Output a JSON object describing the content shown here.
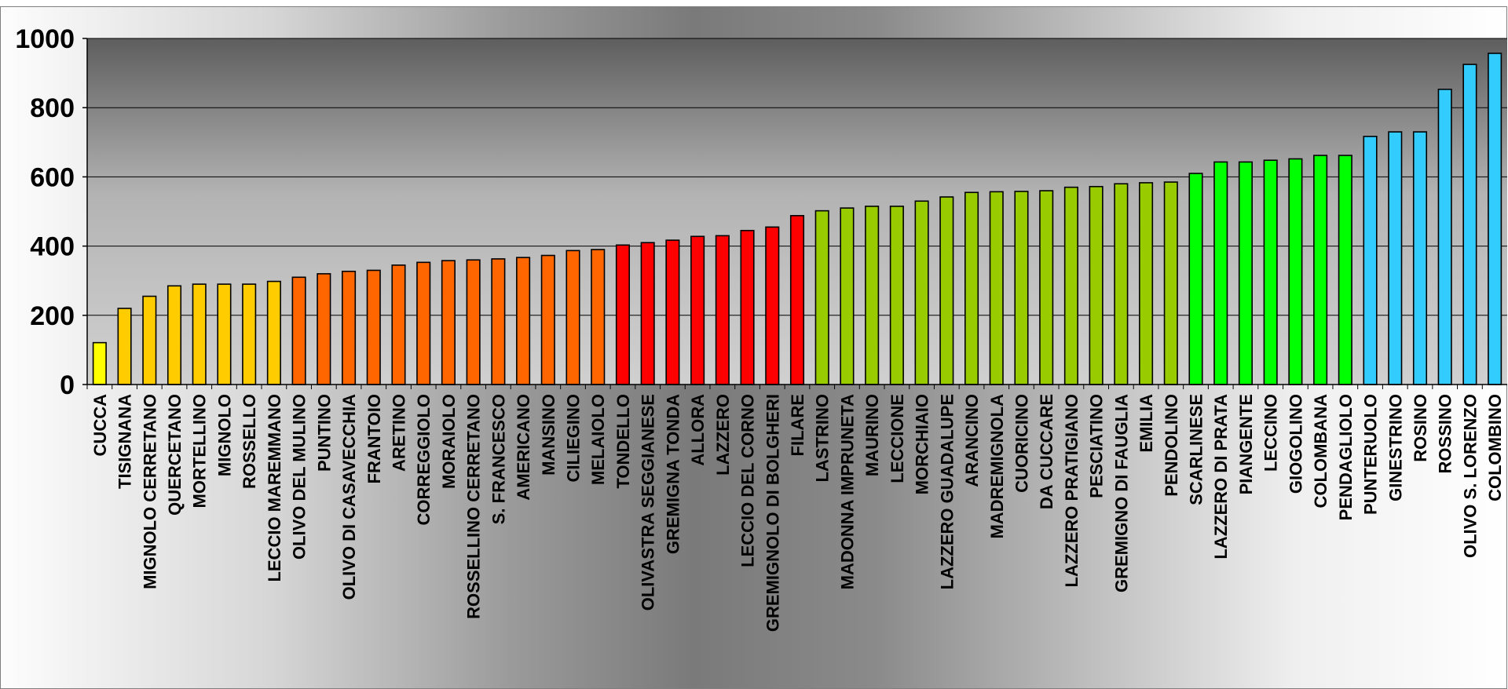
{
  "chart_data": {
    "type": "bar",
    "title": "",
    "xlabel": "",
    "ylabel": "",
    "ylim": [
      0,
      1000
    ],
    "yticks": [
      "0",
      "200",
      "400",
      "600",
      "800",
      "1000"
    ],
    "grid": true,
    "legend": "none",
    "categories": [
      "CUCCA",
      "TISIGNANA",
      "MIGNOLO CERRETANO",
      "QUERCETANO",
      "MORTELLINO",
      "MIGNOLO",
      "ROSSELLO",
      "LECCIO MAREMMANO",
      "OLIVO DEL MULINO",
      "PUNTINO",
      "OLIVO DI CASAVECCHIA",
      "FRANTOIO",
      "ARETINO",
      "CORREGGIOLO",
      "MORAIOLO",
      "ROSSELLINO  CERRETANO",
      "S. FRANCESCO",
      "AMERICANO",
      "MANSINO",
      "CILIEGINO",
      "MELAIOLO",
      "TONDELLO",
      "OLIVASTRA SEGGIANESE",
      "GREMIGNA TONDA",
      "ALLORA",
      "LAZZERO",
      "LECCIO  DEL  CORNO",
      "GREMIGNOLO DI BOLGHERI",
      "FILARE",
      "LASTRINO",
      "MADONNA IMPRUNETA",
      "MAURINO",
      "LECCIONE",
      "MORCHIAIO",
      "LAZZERO GUADALUPE",
      "ARANCINO",
      "MADREMIGNOLA",
      "CUORICINO",
      "DA CUCCARE",
      "LAZZERO  PRATIGIANO",
      "PESCIATINO",
      "GREMIGNO DI FAUGLIA",
      "EMILIA",
      "PENDOLINO",
      "SCARLINESE",
      "LAZZERO DI PRATA",
      "PIANGENTE",
      "LECCINO",
      "GIOGOLINO",
      "COLOMBANA",
      "PENDAGLIOLO",
      "PUNTERUOLO",
      "GINESTRINO",
      "ROSINO",
      "ROSSINO",
      "OLIVO S. LORENZO",
      "COLOMBINO"
    ],
    "values": [
      121,
      220,
      255,
      285,
      290,
      290,
      290,
      298,
      310,
      320,
      327,
      330,
      345,
      353,
      358,
      360,
      363,
      367,
      373,
      387,
      390,
      403,
      410,
      417,
      428,
      430,
      445,
      455,
      488,
      502,
      510,
      515,
      515,
      530,
      542,
      555,
      557,
      558,
      560,
      570,
      572,
      580,
      583,
      585,
      610,
      643,
      643,
      648,
      652,
      662,
      662,
      717,
      730,
      730,
      853,
      925,
      957
    ],
    "colors": [
      "#ffff00",
      "#ffcc00",
      "#ffcc00",
      "#ffcc00",
      "#ffcc00",
      "#ffcc00",
      "#ffcc00",
      "#ffcc00",
      "#ff6600",
      "#ff6600",
      "#ff6600",
      "#ff6600",
      "#ff6600",
      "#ff6600",
      "#ff6600",
      "#ff6600",
      "#ff6600",
      "#ff6600",
      "#ff6600",
      "#ff6600",
      "#ff6600",
      "#ff0000",
      "#ff0000",
      "#ff0000",
      "#ff0000",
      "#ff0000",
      "#ff0000",
      "#ff0000",
      "#ff0000",
      "#99cc00",
      "#99cc00",
      "#99cc00",
      "#99cc00",
      "#99cc00",
      "#99cc00",
      "#99cc00",
      "#99cc00",
      "#99cc00",
      "#99cc00",
      "#99cc00",
      "#99cc00",
      "#99cc00",
      "#99cc00",
      "#99cc00",
      "#00ff00",
      "#00ff00",
      "#00ff00",
      "#00ff00",
      "#00ff00",
      "#00ff00",
      "#00ff00",
      "#33ccff",
      "#33ccff",
      "#33ccff",
      "#33ccff",
      "#33ccff",
      "#33ccff"
    ]
  }
}
